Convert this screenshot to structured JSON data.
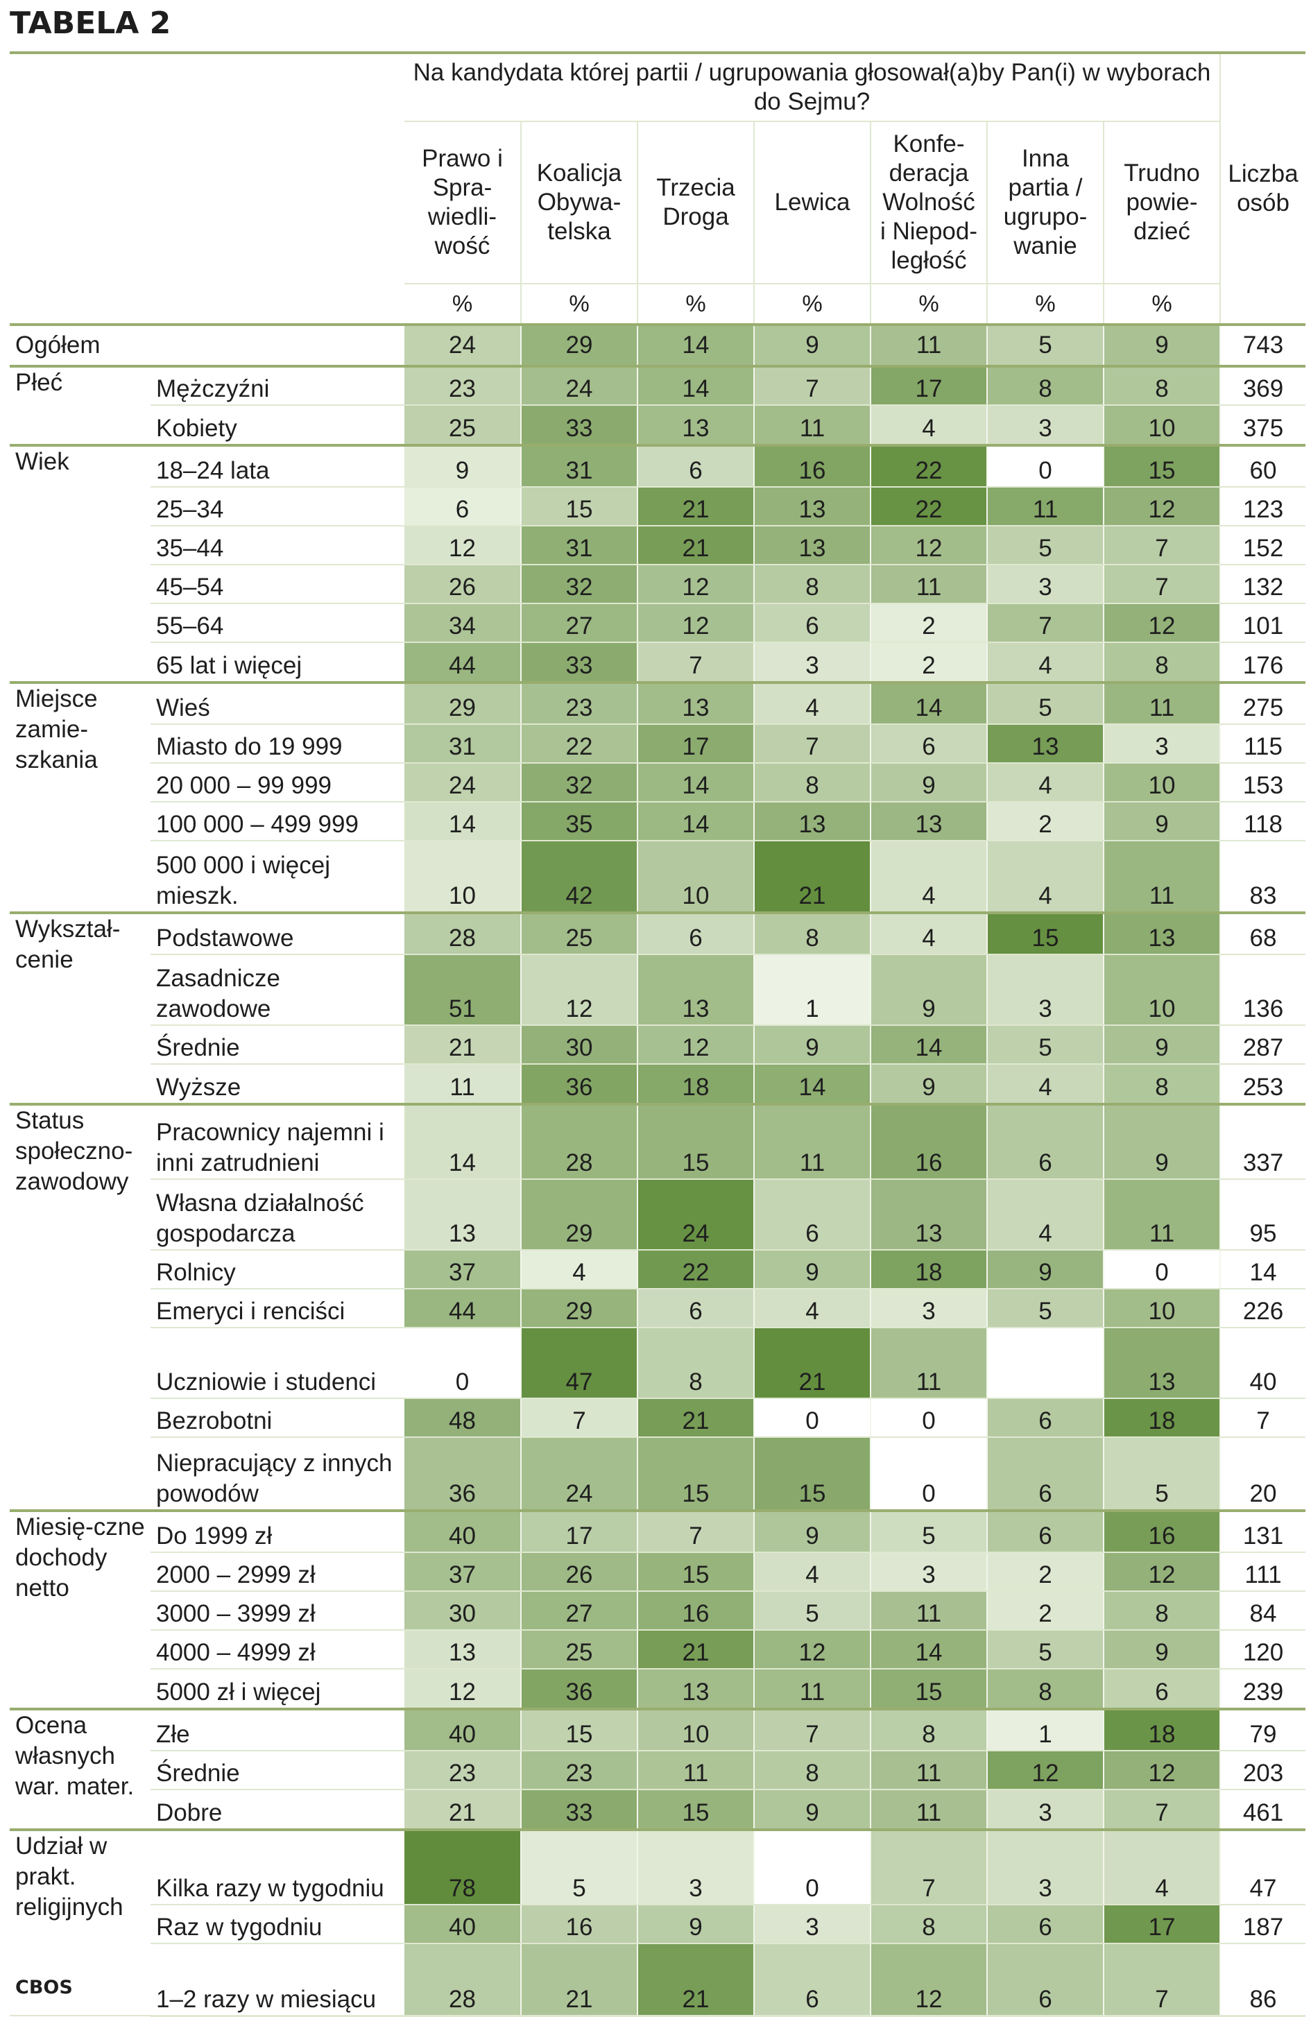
{
  "title": "TABELA 2",
  "source": "CBOS",
  "header": {
    "question": "Na kandydata której partii / ugrupowania głosował(a)by Pan(i) w wyborach do Sejmu?",
    "columns": [
      {
        "label": "Prawo i Spra-wiedli-wość",
        "unit": "%"
      },
      {
        "label": "Koalicja Obywa-telska",
        "unit": "%"
      },
      {
        "label": "Trzecia Droga",
        "unit": "%"
      },
      {
        "label": "Lewica",
        "unit": "%"
      },
      {
        "label": "Konfe-deracja Wolność i Niepod-ległość",
        "unit": "%"
      },
      {
        "label": "Inna partia / ugrupo-wanie",
        "unit": "%"
      },
      {
        "label": "Trudno powie-dzieć",
        "unit": "%"
      }
    ],
    "count_label": "Liczba osób"
  },
  "groups": [
    {
      "label": "Ogółem",
      "rows": [
        {
          "label": "",
          "values": [
            24,
            29,
            14,
            9,
            11,
            5,
            9
          ],
          "n": 743
        }
      ]
    },
    {
      "label": "Płeć",
      "rows": [
        {
          "label": "Mężczyźni",
          "values": [
            23,
            24,
            14,
            7,
            17,
            8,
            8
          ],
          "n": 369
        },
        {
          "label": "Kobiety",
          "values": [
            25,
            33,
            13,
            11,
            4,
            3,
            10
          ],
          "n": 375
        }
      ]
    },
    {
      "label": "Wiek",
      "rows": [
        {
          "label": "18–24 lata",
          "values": [
            9,
            31,
            6,
            16,
            22,
            0,
            15
          ],
          "n": 60
        },
        {
          "label": "25–34",
          "values": [
            6,
            15,
            21,
            13,
            22,
            11,
            12
          ],
          "n": 123
        },
        {
          "label": "35–44",
          "values": [
            12,
            31,
            21,
            13,
            12,
            5,
            7
          ],
          "n": 152
        },
        {
          "label": "45–54",
          "values": [
            26,
            32,
            12,
            8,
            11,
            3,
            7
          ],
          "n": 132
        },
        {
          "label": "55–64",
          "values": [
            34,
            27,
            12,
            6,
            2,
            7,
            12
          ],
          "n": 101
        },
        {
          "label": "65 lat i więcej",
          "values": [
            44,
            33,
            7,
            3,
            2,
            4,
            8
          ],
          "n": 176
        }
      ]
    },
    {
      "label": "Miejsce zamie-szkania",
      "rows": [
        {
          "label": "Wieś",
          "values": [
            29,
            23,
            13,
            4,
            14,
            5,
            11
          ],
          "n": 275
        },
        {
          "label": "Miasto do 19 999",
          "values": [
            31,
            22,
            17,
            7,
            6,
            13,
            3
          ],
          "n": 115
        },
        {
          "label": "20 000 – 99 999",
          "values": [
            24,
            32,
            14,
            8,
            9,
            4,
            10
          ],
          "n": 153
        },
        {
          "label": "100 000 – 499 999",
          "values": [
            14,
            35,
            14,
            13,
            13,
            2,
            9
          ],
          "n": 118
        },
        {
          "label": "500 000 i więcej mieszk.",
          "values": [
            10,
            42,
            10,
            21,
            4,
            4,
            11
          ],
          "n": 83
        }
      ]
    },
    {
      "label": "Wykształ-cenie",
      "rows": [
        {
          "label": "Podstawowe",
          "values": [
            28,
            25,
            6,
            8,
            4,
            15,
            13
          ],
          "n": 68
        },
        {
          "label": "Zasadnicze zawodowe",
          "values": [
            51,
            12,
            13,
            1,
            9,
            3,
            10
          ],
          "n": 136
        },
        {
          "label": "Średnie",
          "values": [
            21,
            30,
            12,
            9,
            14,
            5,
            9
          ],
          "n": 287
        },
        {
          "label": "Wyższe",
          "values": [
            11,
            36,
            18,
            14,
            9,
            4,
            8
          ],
          "n": 253
        }
      ]
    },
    {
      "label": "Status społeczno-zawodowy",
      "rows": [
        {
          "label": "Pracownicy najemni i inni zatrudnieni",
          "values": [
            14,
            28,
            15,
            11,
            16,
            6,
            9
          ],
          "n": 337
        },
        {
          "label": "Własna działalność gospodarcza",
          "values": [
            13,
            29,
            24,
            6,
            13,
            4,
            11
          ],
          "n": 95
        },
        {
          "label": "Rolnicy",
          "values": [
            37,
            4,
            22,
            9,
            18,
            9,
            0
          ],
          "n": 14
        },
        {
          "label": "Emeryci i renciści",
          "values": [
            44,
            29,
            6,
            4,
            3,
            5,
            10
          ],
          "n": 226
        },
        {
          "label": "Uczniowie i studenci",
          "values": [
            0,
            47,
            8,
            21,
            11,
            null,
            13
          ],
          "n": 40
        },
        {
          "label": "Bezrobotni",
          "values": [
            48,
            7,
            21,
            0,
            0,
            6,
            18
          ],
          "n": 7
        },
        {
          "label": "Niepracujący z innych powodów",
          "values": [
            36,
            24,
            15,
            15,
            0,
            6,
            5
          ],
          "n": 20
        }
      ]
    },
    {
      "label": "Miesię-czne dochody netto",
      "rows": [
        {
          "label": "Do 1999 zł",
          "values": [
            40,
            17,
            7,
            9,
            5,
            6,
            16
          ],
          "n": 131
        },
        {
          "label": "2000 – 2999 zł",
          "values": [
            37,
            26,
            15,
            4,
            3,
            2,
            12
          ],
          "n": 111
        },
        {
          "label": "3000 – 3999 zł",
          "values": [
            30,
            27,
            16,
            5,
            11,
            2,
            8
          ],
          "n": 84
        },
        {
          "label": "4000 – 4999 zł",
          "values": [
            13,
            25,
            21,
            12,
            14,
            5,
            9
          ],
          "n": 120
        },
        {
          "label": "5000 zł i więcej",
          "values": [
            12,
            36,
            13,
            11,
            15,
            8,
            6
          ],
          "n": 239
        }
      ]
    },
    {
      "label": "Ocena własnych war. mater.",
      "rows": [
        {
          "label": "Złe",
          "values": [
            40,
            15,
            10,
            7,
            8,
            1,
            18
          ],
          "n": 79
        },
        {
          "label": "Średnie",
          "values": [
            23,
            23,
            11,
            8,
            11,
            12,
            12
          ],
          "n": 203
        },
        {
          "label": "Dobre",
          "values": [
            21,
            33,
            15,
            9,
            11,
            3,
            7
          ],
          "n": 461
        }
      ]
    },
    {
      "label": "Udział w prakt. religijnych",
      "rows": [
        {
          "label": "Kilka razy w tygodniu",
          "values": [
            78,
            5,
            3,
            0,
            7,
            3,
            4
          ],
          "n": 47
        },
        {
          "label": "Raz w tygodniu",
          "values": [
            40,
            16,
            9,
            3,
            8,
            6,
            17
          ],
          "n": 187
        },
        {
          "label": "1–2 razy w miesiącu",
          "values": [
            28,
            21,
            21,
            6,
            12,
            6,
            7
          ],
          "n": 86
        }
      ]
    }
  ],
  "colors": {
    "rule": "#98ad6e",
    "cell_low": "#f7faf1",
    "cell_high": "#5d8a37",
    "zero": "#ffffff"
  }
}
